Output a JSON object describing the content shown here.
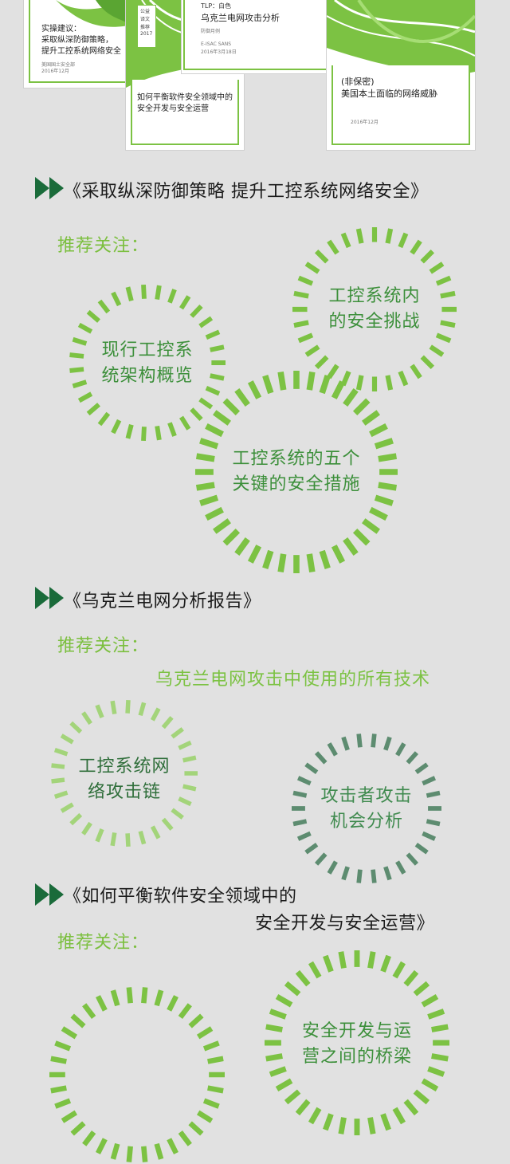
{
  "covers": {
    "c1": {
      "title": [
        "实操建议：",
        "采取纵深防御策略，",
        "提升工控系统网络安全"
      ],
      "meta": [
        "美国国土安全部",
        "2016年12月"
      ]
    },
    "c2": {
      "badge": [
        "公益",
        "译文",
        "推荐",
        "2017"
      ],
      "title": [
        "如何平衡软件安全领域中的",
        "安全开发与安全运营"
      ]
    },
    "c3": {
      "tag": "TLP：白色",
      "title": "乌克兰电网攻击分析",
      "sub": "防御月例",
      "meta": [
        "E-ISAC  SANS",
        "2016年3月18日"
      ]
    },
    "c4": {
      "title": [
        "(非保密)",
        "美国本土面临的网络威胁"
      ],
      "meta": "2016年12月"
    }
  },
  "sections": [
    {
      "title": "《采取纵深防御策略 提升工控系统网络安全》",
      "recommend": "推荐关注：",
      "circles": [
        {
          "text": [
            "工控系统内",
            "的安全挑战"
          ],
          "color": "#7cc243"
        },
        {
          "text": [
            "现行工控系",
            "统架构概览"
          ],
          "color": "#7cc243"
        },
        {
          "text": [
            "工控系统的五个",
            "关键的安全措施"
          ],
          "color": "#7cc243"
        }
      ]
    },
    {
      "title": "《乌克兰电网分析报告》",
      "recommend": "推荐关注：",
      "plain": "乌克兰电网攻击中使用的所有技术",
      "circles": [
        {
          "text": [
            "工控系统网",
            "络攻击链"
          ],
          "color": "#a3d47a"
        },
        {
          "text": [
            "攻击者攻击",
            "机会分析"
          ],
          "color": "#5d8c70"
        }
      ]
    },
    {
      "title": [
        "《如何平衡软件安全领域中的",
        "安全开发与安全运营》"
      ],
      "recommend": "推荐关注：",
      "circles": [
        {
          "text": [],
          "color": "#7cc243"
        },
        {
          "text": [
            "安全开发与运",
            "营之间的桥梁"
          ],
          "color": "#7cc243"
        }
      ]
    }
  ],
  "colors": {
    "accent": "#7cc243",
    "play": "#1a6b3a",
    "text": "#1b1b1b",
    "background": "#e1e1e1"
  },
  "icons": {
    "bullet": "play-double-icon"
  }
}
